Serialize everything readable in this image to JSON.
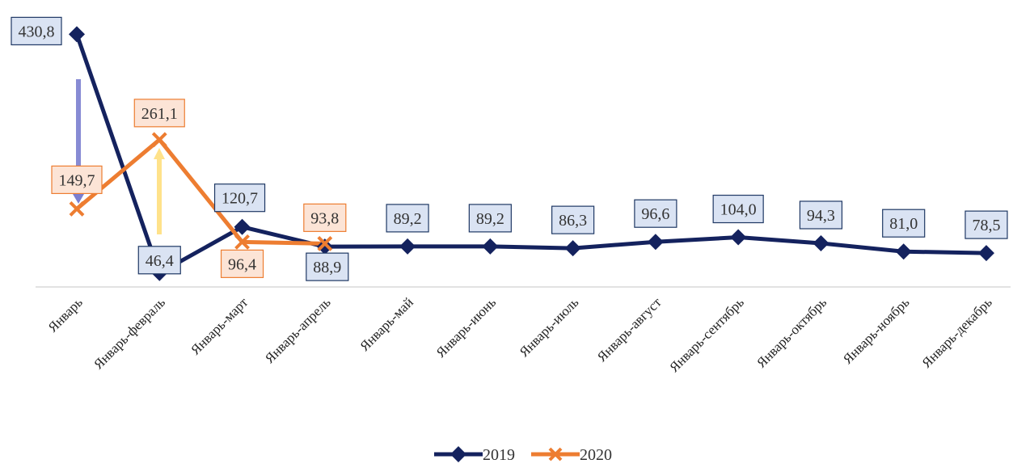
{
  "chart_data": {
    "type": "line",
    "categories": [
      "Январь",
      "Январь-февраль",
      "Январь-март",
      "Январь-апрель",
      "Январь-май",
      "Январь-июнь",
      "Январь-июль",
      "Январь-август",
      "Январь-сентябрь",
      "Январь-октябрь",
      "Январь-ноябрь",
      "Январь-декабрь"
    ],
    "series": [
      {
        "name": "2019",
        "color": "#14225e",
        "values": [
          430.8,
          46.4,
          120.7,
          88.9,
          89.2,
          89.2,
          86.3,
          96.6,
          104.0,
          94.3,
          81.0,
          78.5
        ],
        "value_labels": [
          "430,8",
          "46,4",
          "120,7",
          "88,9",
          "89,2",
          "89,2",
          "86,3",
          "96,6",
          "104,0",
          "94,3",
          "81,0",
          "78,5"
        ]
      },
      {
        "name": "2020",
        "color": "#ed7d31",
        "values": [
          149.7,
          261.1,
          96.4,
          93.8,
          null,
          null,
          null,
          null,
          null,
          null,
          null,
          null
        ],
        "value_labels": [
          "149,7",
          "261,1",
          "96,4",
          "93,8",
          null,
          null,
          null,
          null,
          null,
          null,
          null,
          null
        ]
      }
    ],
    "ylim": [
      24,
      460
    ],
    "legend": "bottom"
  }
}
